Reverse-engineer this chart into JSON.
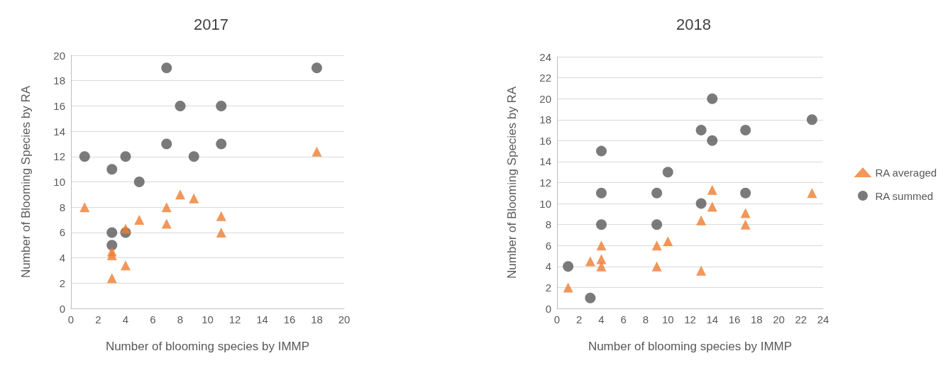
{
  "chart_data": [
    {
      "type": "scatter",
      "title": "2017",
      "xlabel": "Number of blooming species by IMMP",
      "ylabel": "Number of Blooming Species by RA",
      "xlim": [
        0,
        20
      ],
      "xticks": [
        0,
        2,
        4,
        6,
        8,
        10,
        12,
        14,
        16,
        18,
        20
      ],
      "ylim": [
        0,
        20
      ],
      "yticks": [
        0,
        2,
        4,
        6,
        8,
        10,
        12,
        14,
        16,
        18,
        20
      ],
      "grid": "y",
      "legend": false,
      "series": [
        {
          "color": "#ed7d31",
          "marker": "triangle",
          "x": [
            1,
            3,
            3,
            3,
            4,
            4,
            5,
            7,
            7,
            8,
            9,
            11,
            11,
            18
          ],
          "values": [
            8,
            4.5,
            4.2,
            2.4,
            6.3,
            3.4,
            7,
            8,
            6.7,
            9,
            8.7,
            7.3,
            6,
            12.4
          ]
        },
        {
          "color": "#595959",
          "marker": "circle",
          "x": [
            1,
            3,
            3,
            3,
            4,
            4,
            5,
            7,
            7,
            8,
            9,
            11,
            11,
            18
          ],
          "values": [
            12,
            11,
            6,
            5,
            12,
            6,
            10,
            19,
            13,
            16,
            12,
            16,
            13,
            19
          ]
        }
      ]
    },
    {
      "type": "scatter",
      "title": "2018",
      "xlabel": "Number of blooming species by IMMP",
      "ylabel": "Number of Blooming Species by RA",
      "xlim": [
        0,
        24
      ],
      "xticks": [
        0,
        2,
        4,
        6,
        8,
        10,
        12,
        14,
        16,
        18,
        20,
        22,
        24
      ],
      "ylim": [
        0,
        24
      ],
      "yticks": [
        0,
        2,
        4,
        6,
        8,
        10,
        12,
        14,
        16,
        18,
        20,
        22,
        24
      ],
      "grid": "y",
      "legend": "right",
      "series": [
        {
          "name": "RA averaged",
          "color": "#ed7d31",
          "marker": "triangle",
          "x": [
            1,
            3,
            4,
            4,
            4,
            9,
            9,
            10,
            13,
            13,
            14,
            14,
            17,
            17,
            23
          ],
          "values": [
            2,
            4.5,
            6,
            4.7,
            4,
            6,
            4,
            6.4,
            8.4,
            3.6,
            11.3,
            9.7,
            9.1,
            8,
            11
          ]
        },
        {
          "name": "RA summed",
          "color": "#595959",
          "marker": "circle",
          "x": [
            1,
            3,
            4,
            4,
            4,
            9,
            9,
            10,
            13,
            13,
            14,
            14,
            17,
            17,
            23
          ],
          "values": [
            4,
            1,
            15,
            11,
            8,
            11,
            8,
            13,
            17,
            10,
            20,
            16,
            17,
            11,
            18
          ]
        }
      ]
    }
  ]
}
